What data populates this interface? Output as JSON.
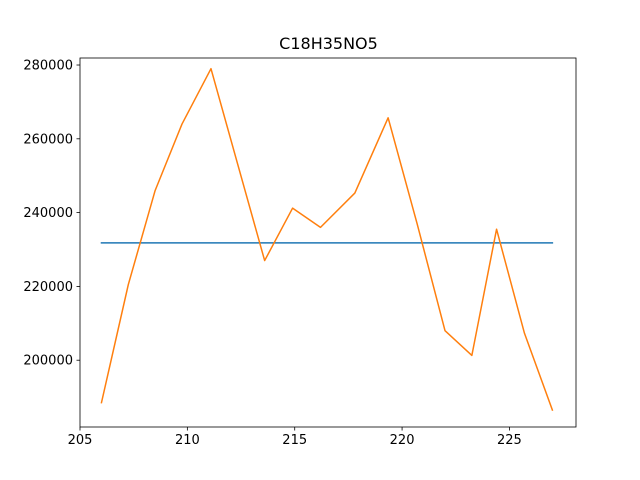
{
  "chart_data": {
    "type": "line",
    "title": "C18H35NO5",
    "xlabel": "",
    "ylabel": "",
    "xlim": [
      205.0,
      228.1
    ],
    "ylim": [
      181900,
      281900
    ],
    "xticks": [
      205,
      210,
      215,
      220,
      225
    ],
    "yticks": [
      200000,
      220000,
      240000,
      260000,
      280000
    ],
    "grid": false,
    "series": [
      {
        "color": "#1f77b4",
        "x": [
          206.0,
          227.0
        ],
        "y": [
          231800,
          231800
        ]
      },
      {
        "color": "#ff7f0e",
        "x": [
          206.0,
          207.25,
          208.5,
          209.75,
          211.1,
          212.35,
          213.6,
          214.9,
          216.2,
          217.8,
          219.35,
          220.7,
          222.0,
          223.25,
          224.4,
          225.7,
          227.0
        ],
        "y": [
          188500,
          220500,
          246000,
          264000,
          279000,
          253000,
          227000,
          241200,
          236000,
          245300,
          265700,
          237000,
          208000,
          201300,
          235500,
          207300,
          186500
        ]
      }
    ]
  }
}
